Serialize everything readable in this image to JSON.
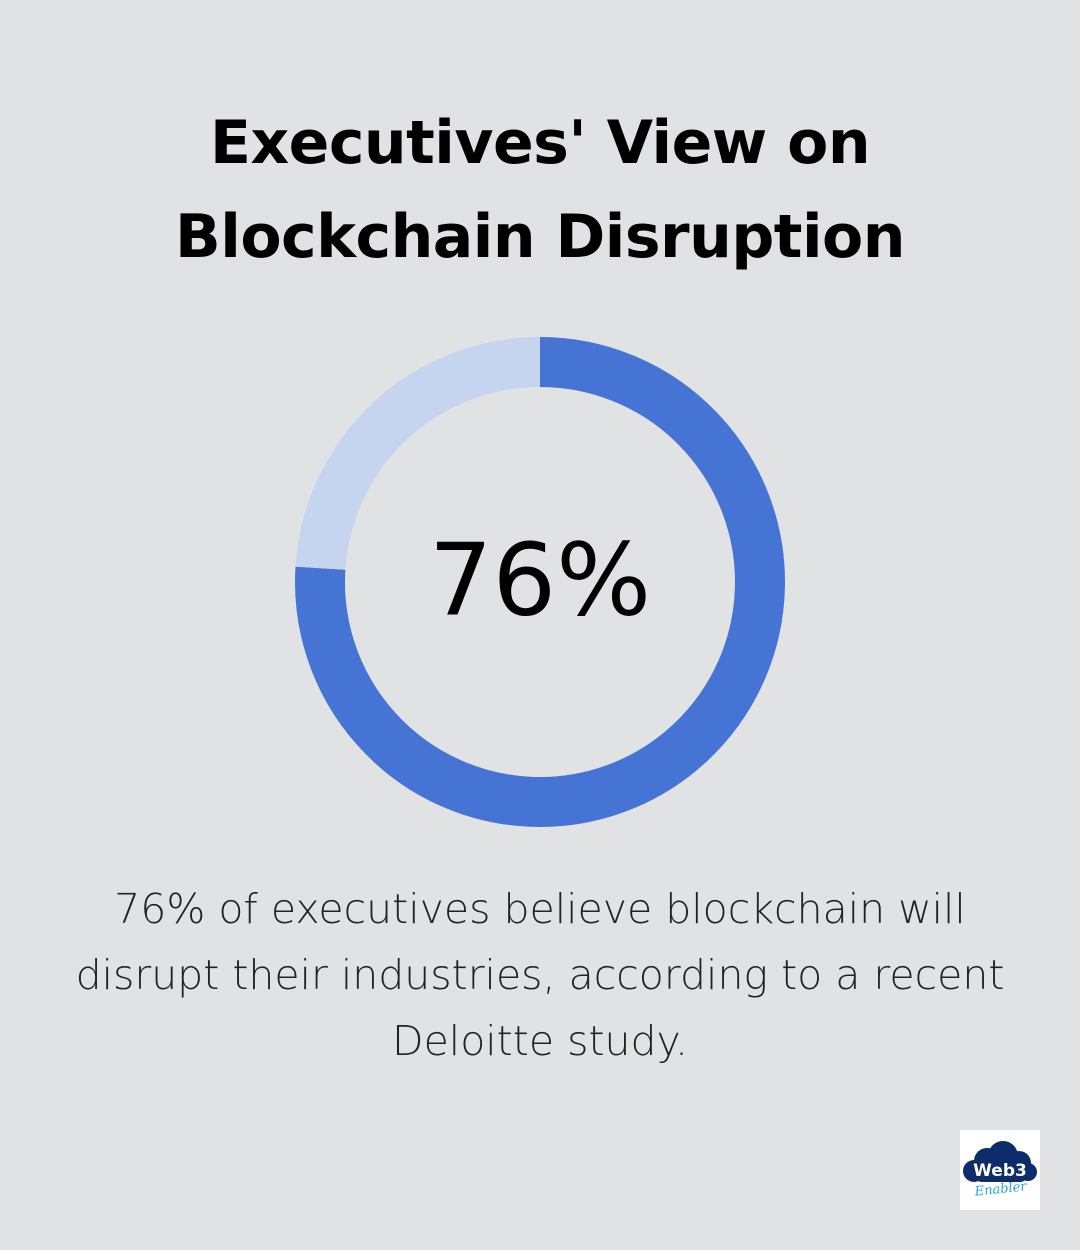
{
  "title_lines": [
    "Executives' View on",
    "Blockchain Disruption"
  ],
  "chart_data": {
    "type": "pie",
    "values": [
      76,
      24
    ],
    "center_label": "76%",
    "colors": {
      "filled": "#4674d4",
      "remaining": "#c5d5f0"
    }
  },
  "caption": "76% of executives believe blockchain will disrupt their industries, according to a recent Deloitte study.",
  "logo": {
    "word": "Web3",
    "sub": "Enabler",
    "cloud_color": "#0d2c6a",
    "sub_color": "#2aa6e0"
  },
  "colors": {
    "background": "#e1e2e3"
  }
}
